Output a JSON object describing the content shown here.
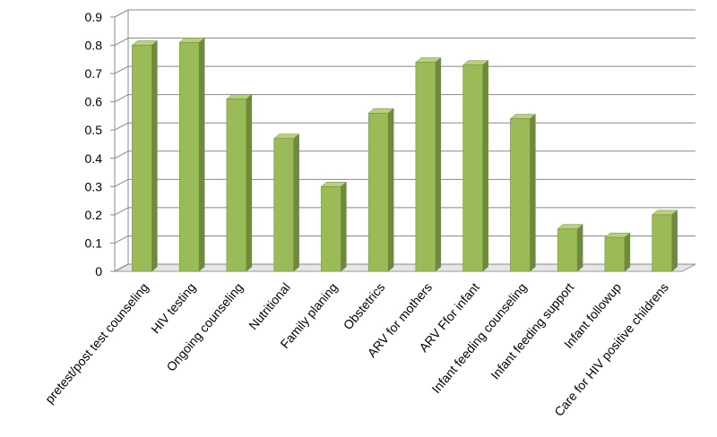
{
  "chart_data": {
    "type": "bar3d",
    "categories": [
      "pretest/post test counseling",
      "HIV testing",
      "Ongoing counseling",
      "Nutritional",
      "Family planing",
      "Obstetrics",
      "ARV for mothers",
      "ARV Ffor infant",
      "Infant feeding counseling",
      "Infant feeding support",
      "Infant followup",
      "Care for HIV positive childrens"
    ],
    "values": [
      0.8,
      0.81,
      0.61,
      0.47,
      0.3,
      0.56,
      0.74,
      0.73,
      0.54,
      0.15,
      0.12,
      0.2
    ],
    "color": "#9bbb59",
    "ylim": [
      0,
      0.9
    ],
    "yticks": [
      0,
      0.1,
      0.2,
      0.3,
      0.4,
      0.5,
      0.6,
      0.7,
      0.8,
      0.9
    ],
    "grid": true
  }
}
